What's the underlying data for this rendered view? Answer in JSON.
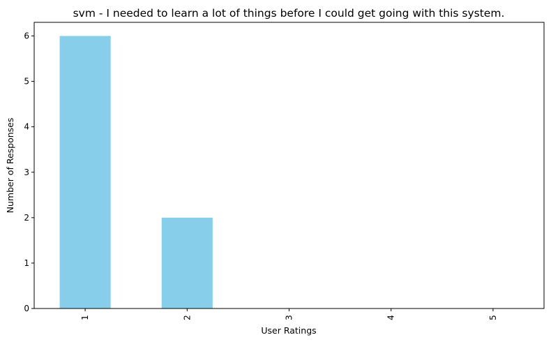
{
  "chart_data": {
    "type": "bar",
    "title": "svm - I needed to learn a lot of things before I could get going with this system.",
    "xlabel": "User Ratings",
    "ylabel": "Number of Responses",
    "categories": [
      "1",
      "2",
      "3",
      "4",
      "5"
    ],
    "values": [
      6,
      2,
      0,
      0,
      0
    ],
    "ylim": [
      0,
      6.3
    ],
    "yticks": [
      0,
      1,
      2,
      3,
      4,
      5,
      6
    ],
    "grid": false,
    "legend": "none",
    "bar_color": "#87ceeb"
  }
}
